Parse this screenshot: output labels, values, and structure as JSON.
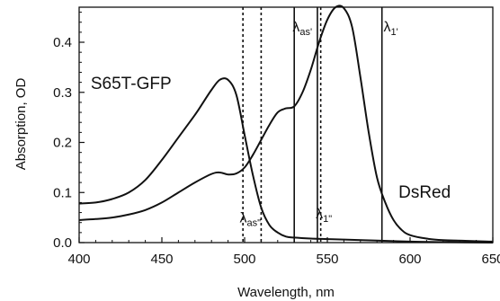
{
  "chart_data": {
    "type": "line",
    "xlabel": "Wavelength, nm",
    "ylabel": "Absorption, OD",
    "xlim": [
      400,
      650
    ],
    "ylim": [
      0,
      0.47
    ],
    "xticks": [
      400,
      450,
      500,
      550,
      600,
      650
    ],
    "yticks": [
      0.0,
      0.1,
      0.2,
      0.3,
      0.4
    ],
    "ytick_labels": [
      "0.0",
      "0.1",
      "0.2",
      "0.3",
      "0.4"
    ],
    "grid": false,
    "legend": "none",
    "series": [
      {
        "name": "S65T-GFP",
        "x": [
          400,
          410,
          420,
          430,
          440,
          450,
          460,
          470,
          475,
          480,
          485,
          490,
          495,
          500,
          505,
          510,
          515,
          520,
          525,
          530,
          540,
          550,
          560,
          580,
          600,
          620,
          650
        ],
        "y": [
          0.078,
          0.08,
          0.087,
          0.1,
          0.125,
          0.165,
          0.21,
          0.255,
          0.28,
          0.305,
          0.325,
          0.325,
          0.295,
          0.215,
          0.135,
          0.07,
          0.035,
          0.02,
          0.012,
          0.01,
          0.008,
          0.007,
          0.006,
          0.004,
          0.002,
          0.001,
          0.0
        ]
      },
      {
        "name": "DsRed",
        "x": [
          400,
          410,
          420,
          430,
          440,
          450,
          460,
          470,
          480,
          485,
          490,
          495,
          500,
          505,
          510,
          515,
          520,
          525,
          530,
          535,
          540,
          545,
          550,
          555,
          560,
          565,
          570,
          575,
          580,
          585,
          590,
          595,
          600,
          610,
          620,
          650
        ],
        "y": [
          0.045,
          0.047,
          0.05,
          0.056,
          0.065,
          0.08,
          0.1,
          0.12,
          0.137,
          0.14,
          0.136,
          0.138,
          0.15,
          0.175,
          0.205,
          0.235,
          0.26,
          0.268,
          0.272,
          0.3,
          0.345,
          0.4,
          0.445,
          0.47,
          0.468,
          0.43,
          0.33,
          0.22,
          0.13,
          0.08,
          0.045,
          0.025,
          0.015,
          0.008,
          0.005,
          0.002
        ]
      }
    ],
    "vlines": [
      {
        "x": 499,
        "style": "dashed"
      },
      {
        "x": 510,
        "style": "dashed"
      },
      {
        "x": 530,
        "style": "solid"
      },
      {
        "x": 544,
        "style": "solid"
      },
      {
        "x": 546,
        "style": "dashed"
      },
      {
        "x": 583,
        "style": "solid"
      }
    ],
    "annotations": [
      {
        "id": "label-gfp",
        "text": "S65T-GFP",
        "x": 407,
        "y": 0.307,
        "size": "big"
      },
      {
        "id": "label-dsred",
        "text": "DsRed",
        "x": 593,
        "y": 0.09,
        "size": "big"
      },
      {
        "id": "lambda-as-prime",
        "text": "λ",
        "sub": "as'",
        "x": 529,
        "y": 0.422
      },
      {
        "id": "lambda-1-prime",
        "text": "λ",
        "sub": "1'",
        "x": 584,
        "y": 0.422
      },
      {
        "id": "lambda-as-dprime",
        "text": "λ",
        "sub": "as\"",
        "x": 497,
        "y": 0.04
      },
      {
        "id": "lambda-1-dprime",
        "text": "λ",
        "sub": "1\"",
        "x": 543,
        "y": 0.048
      }
    ]
  }
}
